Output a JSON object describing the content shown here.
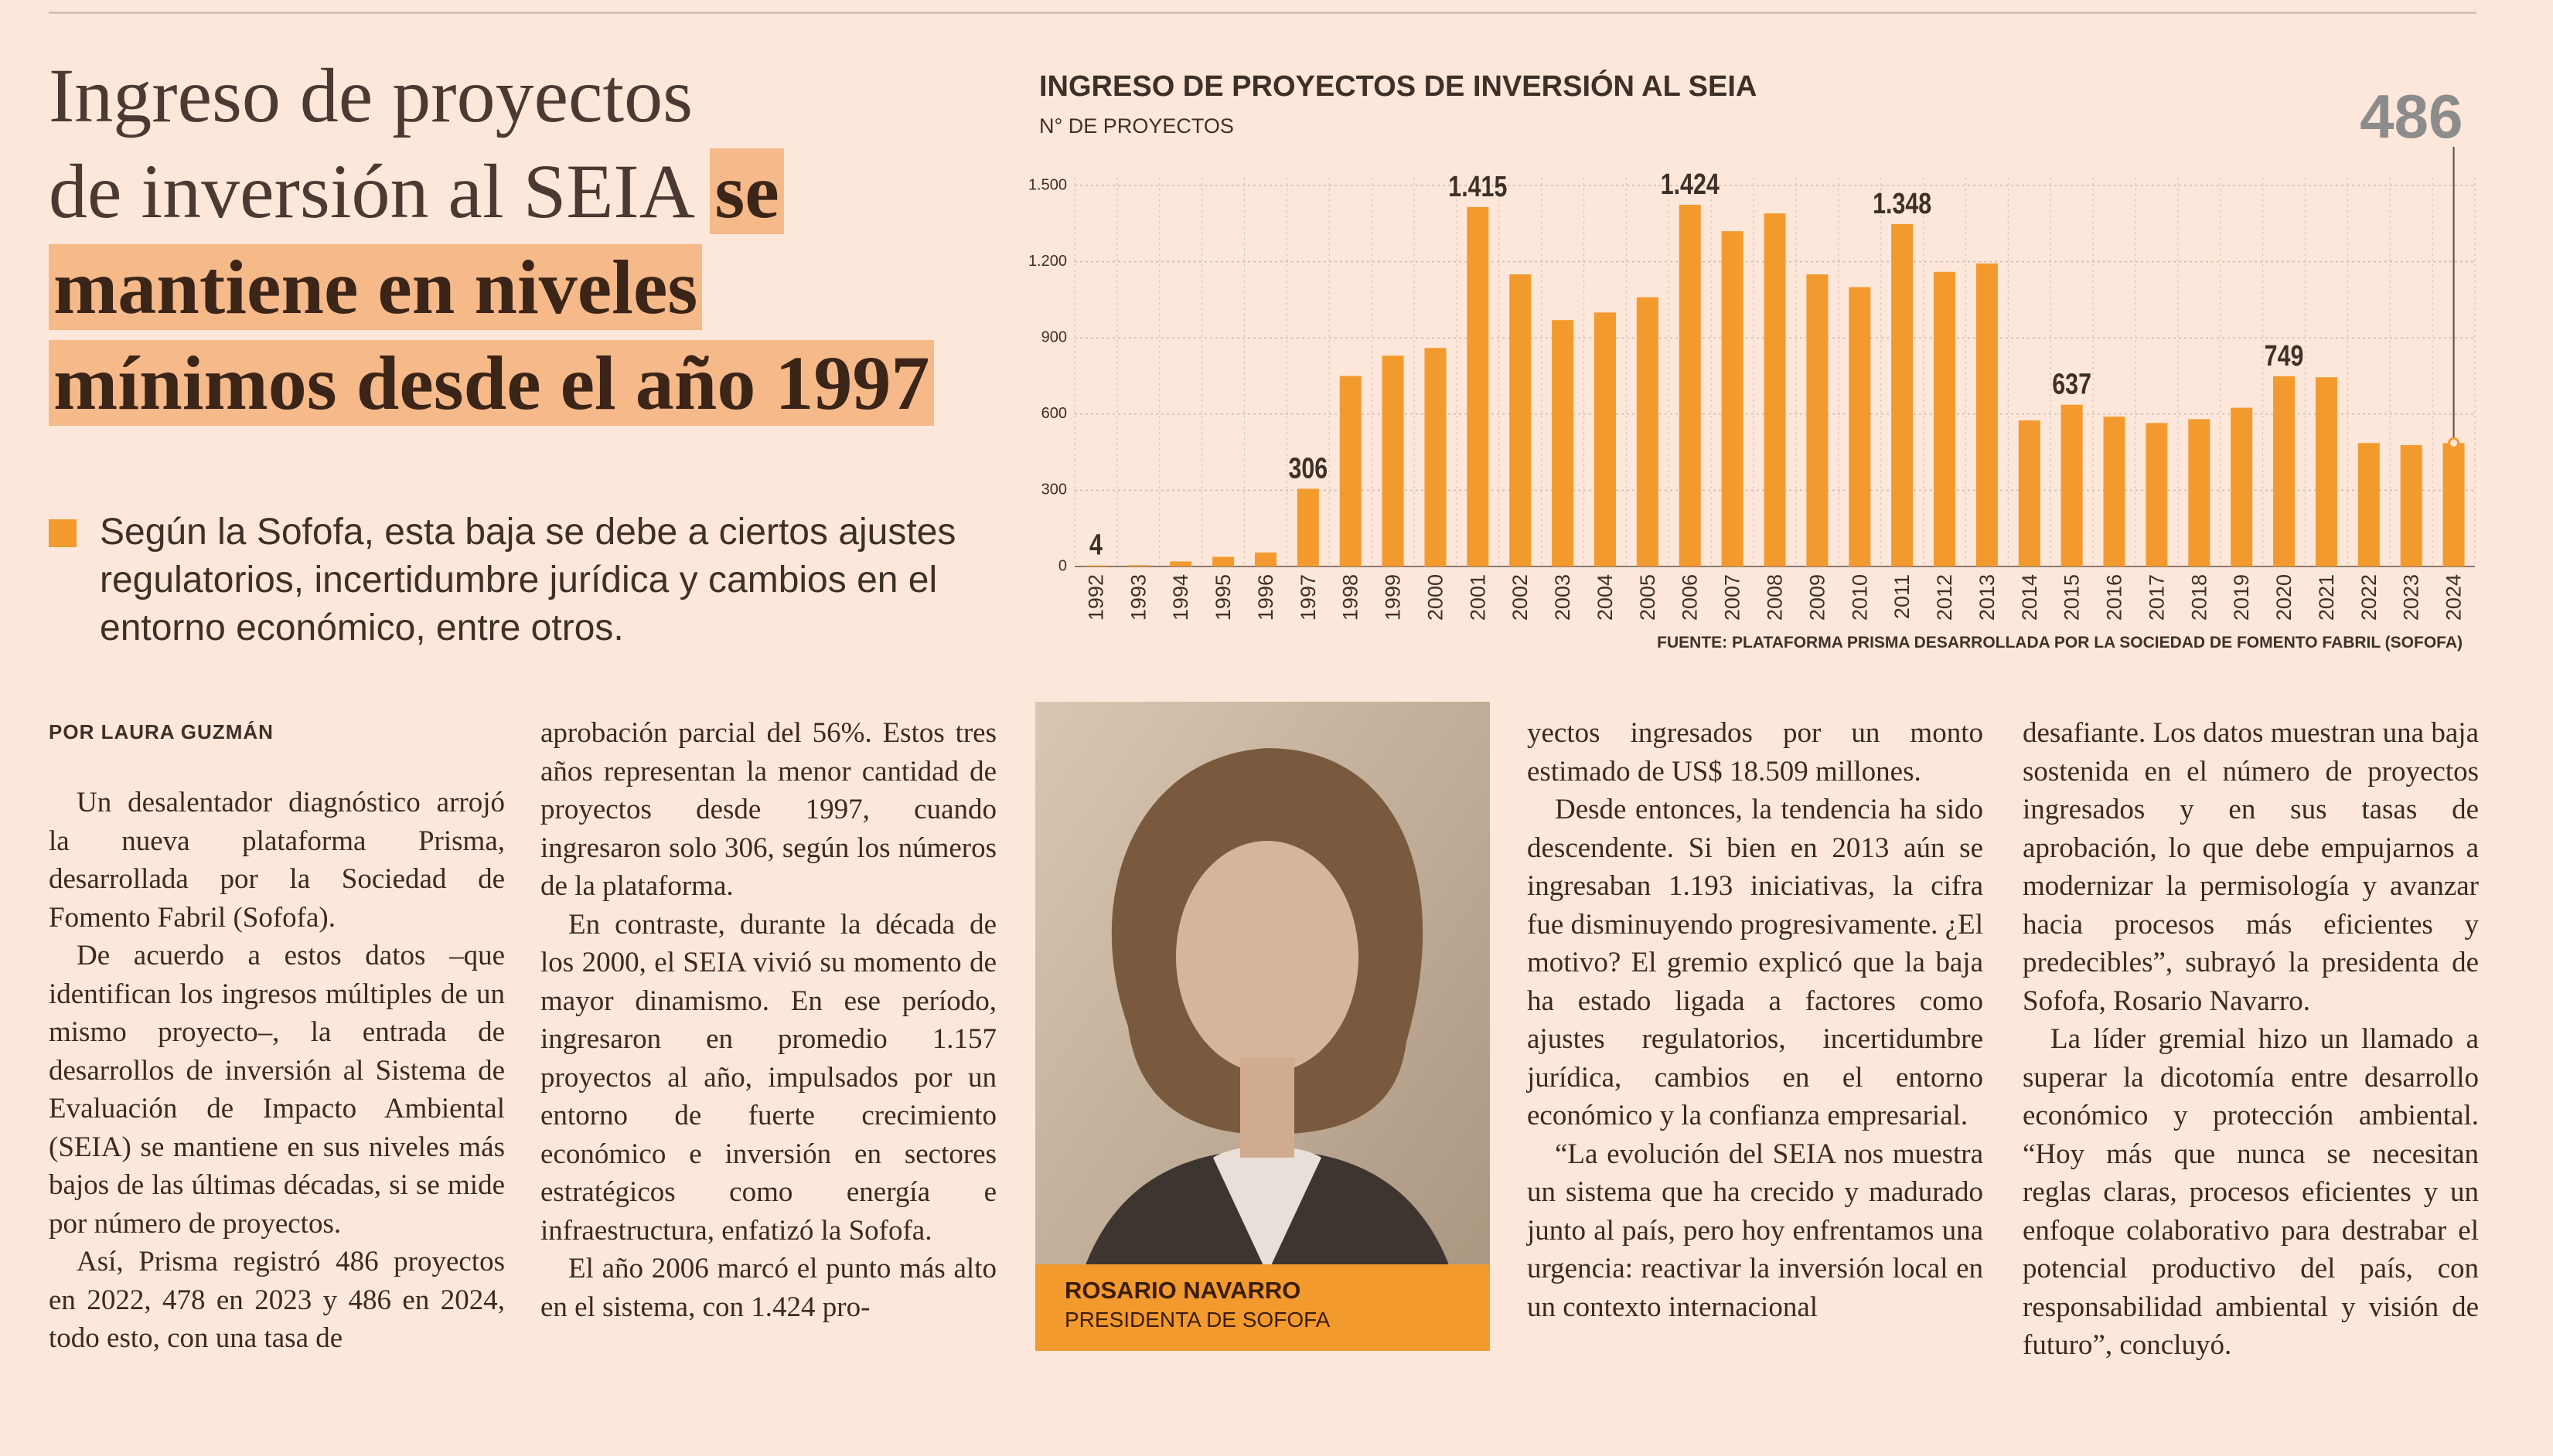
{
  "header": {
    "headline": [
      "Ingreso de proyectos",
      "de inversión al SEIA",
      "se",
      "mantiene en niveles",
      "mínimos desde el año 1997"
    ],
    "lede": "Según la Sofofa, esta baja se debe a ciertos ajustes regulatorios, incertidumbre jurídica y cambios en el entorno económico, entre otros."
  },
  "byline": "POR LAURA GUZMÁN",
  "columns": [
    [
      "Un desalentador diagnóstico arrojó la nueva plataforma Prisma, desarrollada por la Sociedad de Fomento Fabril (Sofofa).",
      "De acuerdo a estos datos –que identifican los ingresos múltiples de un mismo proyecto–, la entrada de desarrollos de inversión al Sistema de Evaluación de Impacto Ambiental (SEIA) se mantiene en sus niveles más bajos de las últimas décadas, si se mide por número de proyectos.",
      "Así, Prisma registró 486 proyectos en 2022, 478 en 2023 y 486 en 2024, todo esto, con una tasa de"
    ],
    [
      "aprobación parcial del 56%. Estos tres años representan la menor cantidad de proyectos desde 1997, cuando ingresaron solo 306, según los números de la plataforma.",
      "En contraste, durante la década de los 2000, el SEIA vivió su momento de mayor dinamismo. En ese período, ingresaron en promedio 1.157 proyectos al año, impulsados por un entorno de fuerte crecimiento económico e inversión en sectores estratégicos como energía e infraestructura, enfatizó la Sofofa.",
      "El año 2006 marcó el punto más alto en el sistema, con 1.424 pro-"
    ],
    [
      "yectos ingresados por un monto estimado de US$ 18.509 millones.",
      "Desde entonces, la tendencia ha sido descendente. Si bien en 2013 aún se ingresaban 1.193 iniciativas, la cifra fue disminuyendo progresivamente. ¿El motivo? El gremio explicó que la baja ha estado ligada a factores como ajustes regulatorios, incertidumbre jurídica, cambios en el entorno económico y la confianza empresarial.",
      "“La evolución del SEIA nos muestra un sistema que ha crecido y madurado junto al país, pero hoy enfrentamos una urgencia: reactivar la inversión local en un contexto internacional"
    ],
    [
      "desafiante. Los datos muestran una baja sostenida en el número de proyectos ingresados y en sus tasas de aprobación, lo que debe empujarnos a modernizar la permisología y avanzar hacia procesos más eficientes y predecibles”, subrayó la presidenta de Sofofa, Rosario Navarro.",
      "La líder gremial hizo un llamado a superar la dicotomía entre desarrollo económico y protección ambiental. “Hoy más que nunca se necesitan reglas claras, procesos eficientes y un enfoque colaborativo para destrabar el potencial productivo del país, con responsabilidad ambiental y visión de futuro”, concluyó."
    ]
  ],
  "photo_caption": {
    "name": "ROSARIO NAVARRO",
    "role": "PRESIDENTA DE SOFOFA"
  },
  "chart_data": {
    "type": "bar",
    "title": "INGRESO DE PROYECTOS DE INVERSIÓN AL SEIA",
    "subtitle": "N° DE PROYECTOS",
    "source": "FUENTE: PLATAFORMA PRISMA DESARROLLADA POR LA SOCIEDAD DE FOMENTO FABRIL (SOFOFA)",
    "categories": [
      "1992",
      "1993",
      "1994",
      "1995",
      "1996",
      "1997",
      "1998",
      "1999",
      "2000",
      "2001",
      "2002",
      "2003",
      "2004",
      "2005",
      "2006",
      "2007",
      "2008",
      "2009",
      "2010",
      "2011",
      "2012",
      "2013",
      "2014",
      "2015",
      "2016",
      "2017",
      "2018",
      "2019",
      "2020",
      "2021",
      "2022",
      "2023",
      "2024"
    ],
    "values": [
      4,
      5,
      20,
      38,
      55,
      306,
      750,
      830,
      860,
      1415,
      1150,
      970,
      1000,
      1060,
      1424,
      1320,
      1390,
      1150,
      1100,
      1348,
      1160,
      1193,
      575,
      637,
      590,
      565,
      580,
      625,
      749,
      745,
      486,
      478,
      486
    ],
    "value_labels": [
      "4",
      null,
      null,
      null,
      null,
      "306",
      null,
      null,
      null,
      "1.415",
      null,
      null,
      null,
      null,
      "1.424",
      null,
      null,
      null,
      null,
      "1.348",
      null,
      null,
      null,
      "637",
      null,
      null,
      null,
      null,
      "749",
      null,
      null,
      null,
      "486"
    ],
    "color": "#f39a2e",
    "ylim": [
      0,
      1500
    ],
    "yticks": [
      0,
      300,
      600,
      900,
      {
        "value": 1200,
        "label": "1.200"
      },
      {
        "value": 1500,
        "label": "1.500"
      }
    ],
    "grid": true
  }
}
